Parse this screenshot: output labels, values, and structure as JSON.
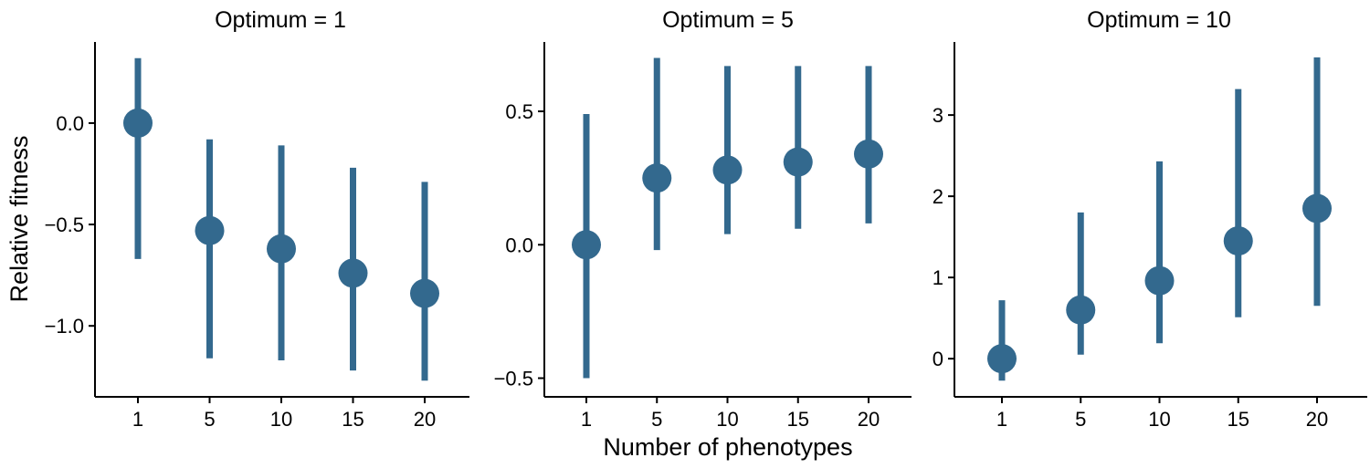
{
  "figure": {
    "ylabel": "Relative fitness",
    "xlabel": "Number of phenotypes",
    "point_color": "#33698E"
  },
  "chart_data": [
    {
      "type": "scatter",
      "title": "Optimum = 1",
      "categories": [
        "1",
        "5",
        "10",
        "15",
        "20"
      ],
      "x": [
        1,
        5,
        10,
        15,
        20
      ],
      "values": [
        0.0,
        -0.53,
        -0.62,
        -0.74,
        -0.84
      ],
      "lower": [
        -0.67,
        -1.16,
        -1.17,
        -1.22,
        -1.27
      ],
      "upper": [
        0.32,
        -0.08,
        -0.11,
        -0.22,
        -0.29
      ],
      "ylim": [
        -1.35,
        0.4
      ],
      "yticks": [
        0.0,
        -0.5,
        -1.0
      ],
      "ytick_labels": [
        "0.0",
        "−0.5",
        "−1.0"
      ]
    },
    {
      "type": "scatter",
      "title": "Optimum = 5",
      "categories": [
        "1",
        "5",
        "10",
        "15",
        "20"
      ],
      "x": [
        1,
        5,
        10,
        15,
        20
      ],
      "values": [
        0.0,
        0.25,
        0.28,
        0.31,
        0.34
      ],
      "lower": [
        -0.5,
        -0.02,
        0.04,
        0.06,
        0.08
      ],
      "upper": [
        0.49,
        0.7,
        0.67,
        0.67,
        0.67
      ],
      "ylim": [
        -0.57,
        0.76
      ],
      "yticks": [
        0.5,
        0.0,
        -0.5
      ],
      "ytick_labels": [
        "0.5",
        "0.0",
        "−0.5"
      ]
    },
    {
      "type": "scatter",
      "title": "Optimum = 10",
      "categories": [
        "1",
        "5",
        "10",
        "15",
        "20"
      ],
      "x": [
        1,
        5,
        10,
        15,
        20
      ],
      "values": [
        0.0,
        0.6,
        0.96,
        1.45,
        1.85
      ],
      "lower": [
        -0.27,
        0.05,
        0.19,
        0.51,
        0.65
      ],
      "upper": [
        0.72,
        1.8,
        2.43,
        3.32,
        3.71
      ],
      "ylim": [
        -0.47,
        3.9
      ],
      "yticks": [
        3,
        2,
        1,
        0
      ],
      "ytick_labels": [
        "3",
        "2",
        "1",
        "0"
      ]
    }
  ]
}
